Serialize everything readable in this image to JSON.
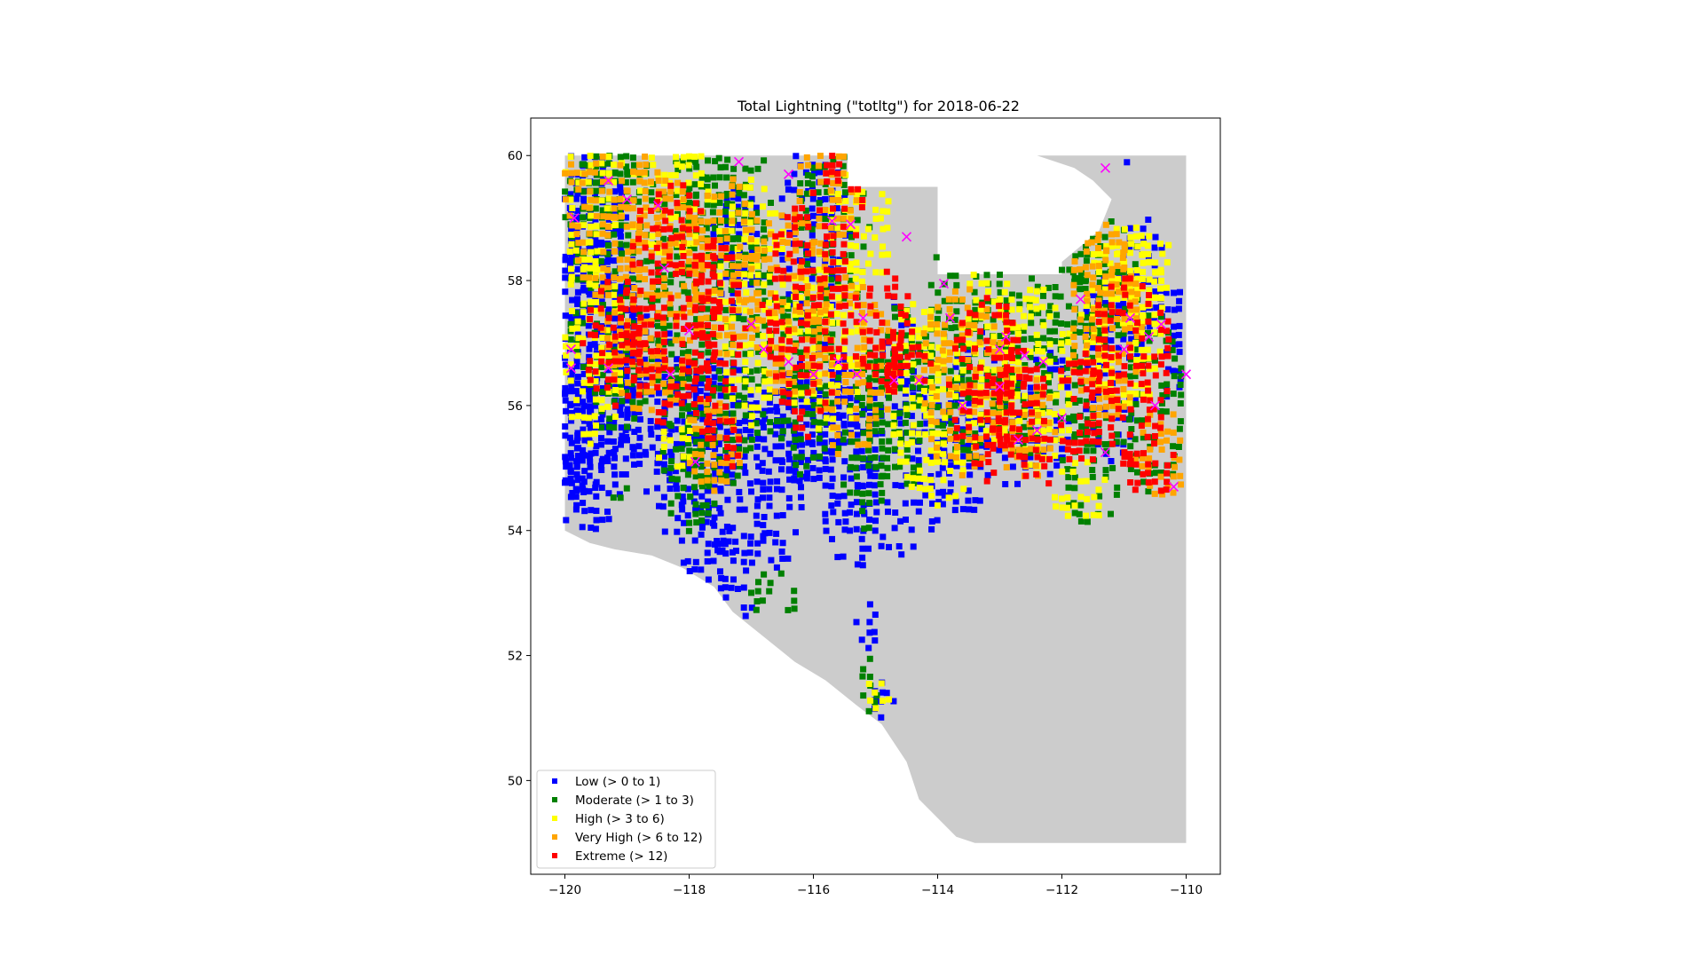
{
  "chart_data": {
    "type": "scatter",
    "title": "Total Lightning (\"totltg\") for 2018-06-22",
    "xlabel": "",
    "ylabel": "",
    "xlim": [
      -120.55,
      -109.45
    ],
    "ylim": [
      48.5,
      60.6
    ],
    "x_ticks": [
      -120,
      -118,
      -116,
      -114,
      -112,
      -110
    ],
    "x_tick_labels": [
      "−120",
      "−118",
      "−116",
      "−114",
      "−112",
      "−110"
    ],
    "y_ticks": [
      50,
      52,
      54,
      56,
      58,
      60
    ],
    "y_tick_labels": [
      "50",
      "52",
      "54",
      "56",
      "58",
      "60"
    ],
    "grid": false,
    "legend_placement": "lower-left",
    "region_color": "#cccccc",
    "region_outline": [
      [
        -120,
        60
      ],
      [
        -115.45,
        60
      ],
      [
        -115.45,
        59.5
      ],
      [
        -114,
        59.5
      ],
      [
        -114,
        58.1
      ],
      [
        -112,
        58.1
      ],
      [
        -112,
        58.3
      ],
      [
        -111.4,
        58.8
      ],
      [
        -111.2,
        59.3
      ],
      [
        -111.5,
        59.6
      ],
      [
        -111.8,
        59.8
      ],
      [
        -112.4,
        60
      ],
      [
        -110,
        60
      ],
      [
        -110,
        49
      ],
      [
        -113.4,
        49
      ],
      [
        -113.7,
        49.1
      ],
      [
        -114.3,
        49.7
      ],
      [
        -114.5,
        50.3
      ],
      [
        -114.9,
        50.9
      ],
      [
        -115.3,
        51.2
      ],
      [
        -115.8,
        51.6
      ],
      [
        -116.3,
        51.9
      ],
      [
        -116.8,
        52.3
      ],
      [
        -117.3,
        52.7
      ],
      [
        -117.6,
        53.1
      ],
      [
        -118.1,
        53.4
      ],
      [
        -118.6,
        53.6
      ],
      [
        -119.2,
        53.7
      ],
      [
        -119.6,
        53.8
      ],
      [
        -120,
        54
      ]
    ],
    "series": [
      {
        "name": "Low (> 0 to 1)",
        "color": "#0000ff",
        "marker": "square",
        "cells": [
          [
            -120.0,
            59.3,
            2.0,
            4
          ],
          [
            -119.8,
            57.4,
            2.0,
            6
          ],
          [
            -119.7,
            56.4,
            1.8,
            5
          ],
          [
            -119.8,
            55.5,
            1.0,
            2
          ],
          [
            -118.6,
            56.0,
            1.0,
            3
          ],
          [
            -118.0,
            55.2,
            1.4,
            3
          ],
          [
            -117.5,
            54.8,
            1.6,
            4
          ],
          [
            -116.6,
            54.9,
            1.0,
            3
          ],
          [
            -115.4,
            54.8,
            1.0,
            3
          ],
          [
            -114.6,
            55.1,
            1.6,
            3
          ],
          [
            -113.6,
            55.2,
            1.0,
            2
          ],
          [
            -112.8,
            55.6,
            0.8,
            2
          ],
          [
            -112.2,
            55.9,
            0.8,
            2
          ],
          [
            -111.2,
            56.6,
            1.0,
            3
          ],
          [
            -110.7,
            58.0,
            0.8,
            2
          ],
          [
            -110.2,
            57.0,
            0.4,
            2
          ],
          [
            -113.4,
            56.2,
            0.8,
            2
          ],
          [
            -114.6,
            56.9,
            0.6,
            2
          ],
          [
            -116.0,
            58.7,
            1.2,
            3
          ],
          [
            -117.2,
            58.5,
            1.0,
            2
          ],
          [
            -116.2,
            55.7,
            1.0,
            2
          ],
          [
            -115.7,
            56.0,
            0.8,
            2
          ],
          [
            -117.4,
            53.8,
            0.5,
            0.5
          ],
          [
            -117.2,
            52.7,
            0.6,
            0.4
          ],
          [
            -115.1,
            52.5,
            0.4,
            0.8
          ],
          [
            -114.9,
            51.3,
            0.4,
            0.6
          ],
          [
            -117.4,
            55.4,
            0.6,
            1.0
          ],
          [
            -111.0,
            59.85,
            0.3,
            0.2
          ]
        ]
      },
      {
        "name": "Moderate (> 1 to 3)",
        "color": "#008000",
        "marker": "square",
        "cells": [
          [
            -119.6,
            59.6,
            1.6,
            2
          ],
          [
            -119.2,
            58.0,
            1.6,
            5
          ],
          [
            -117.6,
            57.6,
            2.0,
            6
          ],
          [
            -117.4,
            59.2,
            1.4,
            3
          ],
          [
            -116.2,
            56.4,
            1.2,
            3
          ],
          [
            -115.7,
            58.8,
            1.2,
            3
          ],
          [
            -115.2,
            55.4,
            0.8,
            3
          ],
          [
            -114.6,
            56.1,
            1.2,
            3
          ],
          [
            -113.5,
            57.0,
            1.4,
            4
          ],
          [
            -112.6,
            56.6,
            1.0,
            3
          ],
          [
            -111.8,
            57.0,
            1.0,
            3
          ],
          [
            -111.3,
            58.0,
            1.2,
            2
          ],
          [
            -110.5,
            56.0,
            1.0,
            3
          ],
          [
            -111.5,
            55.0,
            1.2,
            2
          ],
          [
            -119.1,
            54.6,
            0.4,
            0.4
          ],
          [
            -118.0,
            55.0,
            1.0,
            2
          ],
          [
            -115.1,
            51.6,
            0.4,
            1.0
          ],
          [
            -116.6,
            53.0,
            0.8,
            0.8
          ]
        ]
      },
      {
        "name": "High (> 3 to 6)",
        "color": "#ffff00",
        "marker": "square",
        "cells": [
          [
            -119.8,
            59.4,
            1.6,
            3
          ],
          [
            -119.6,
            56.9,
            1.2,
            3
          ],
          [
            -118.3,
            59.3,
            1.4,
            2
          ],
          [
            -117.0,
            57.7,
            1.2,
            4
          ],
          [
            -115.8,
            57.0,
            1.4,
            3
          ],
          [
            -115.2,
            59.0,
            1.2,
            2
          ],
          [
            -114.3,
            56.2,
            1.0,
            3
          ],
          [
            -113.2,
            56.8,
            1.2,
            3
          ],
          [
            -112.4,
            56.4,
            1.2,
            3
          ],
          [
            -111.0,
            57.4,
            1.4,
            3
          ],
          [
            -110.7,
            58.2,
            1.0,
            1.5
          ],
          [
            -114.0,
            54.9,
            1.0,
            1
          ],
          [
            -111.7,
            54.6,
            1.0,
            1
          ],
          [
            -115.0,
            51.3,
            0.4,
            0.6
          ],
          [
            -118.2,
            55.4,
            0.8,
            1
          ]
        ]
      },
      {
        "name": "Very High (> 6 to 12)",
        "color": "#ffa500",
        "marker": "square",
        "cells": [
          [
            -119.4,
            59.4,
            1.6,
            3
          ],
          [
            -118.6,
            57.8,
            1.8,
            4
          ],
          [
            -117.4,
            58.2,
            1.2,
            3
          ],
          [
            -116.4,
            57.6,
            1.4,
            3
          ],
          [
            -115.8,
            59.3,
            1.0,
            2
          ],
          [
            -115.4,
            56.6,
            1.4,
            3
          ],
          [
            -113.6,
            56.4,
            1.4,
            3
          ],
          [
            -112.6,
            55.6,
            1.0,
            2
          ],
          [
            -111.3,
            57.2,
            1.2,
            3
          ],
          [
            -110.4,
            55.2,
            0.8,
            1.5
          ],
          [
            -111.4,
            58.4,
            1.0,
            1
          ],
          [
            -117.6,
            55.4,
            1.0,
            1.5
          ]
        ]
      },
      {
        "name": "Extreme (> 12)",
        "color": "#ff0000",
        "marker": "square",
        "cells": [
          [
            -118.3,
            57.6,
            1.6,
            4
          ],
          [
            -117.6,
            57.2,
            1.0,
            3
          ],
          [
            -116.1,
            57.5,
            1.4,
            4
          ],
          [
            -115.5,
            59.6,
            0.8,
            2
          ],
          [
            -114.9,
            57.2,
            1.0,
            2
          ],
          [
            -114.7,
            56.6,
            1.4,
            1
          ],
          [
            -113.2,
            56.3,
            1.2,
            3
          ],
          [
            -112.7,
            55.9,
            1.0,
            2
          ],
          [
            -111.7,
            56.0,
            0.8,
            2
          ],
          [
            -110.9,
            56.6,
            1.4,
            3
          ],
          [
            -110.6,
            55.0,
            1.0,
            1
          ],
          [
            -117.5,
            55.4,
            0.8,
            1
          ],
          [
            -119.2,
            57.0,
            1.0,
            2
          ],
          [
            -112.4,
            55.1,
            0.6,
            1
          ]
        ]
      },
      {
        "name": "",
        "color": "#ff00ff",
        "marker": "x",
        "points": [
          [
            -119.3,
            59.6
          ],
          [
            -119.0,
            59.3
          ],
          [
            -119.85,
            59.0
          ],
          [
            -118.5,
            59.2
          ],
          [
            -118.4,
            58.2
          ],
          [
            -117.2,
            59.9
          ],
          [
            -116.4,
            59.7
          ],
          [
            -115.4,
            58.9
          ],
          [
            -115.7,
            58.95
          ],
          [
            -114.5,
            58.7
          ],
          [
            -113.9,
            57.95
          ],
          [
            -119.9,
            56.9
          ],
          [
            -119.9,
            56.6
          ],
          [
            -119.3,
            56.6
          ],
          [
            -118.3,
            56.5
          ],
          [
            -118.0,
            57.2
          ],
          [
            -117.0,
            57.3
          ],
          [
            -116.8,
            56.9
          ],
          [
            -116.4,
            56.7
          ],
          [
            -116.0,
            56.5
          ],
          [
            -115.6,
            56.7
          ],
          [
            -115.3,
            56.5
          ],
          [
            -115.2,
            57.4
          ],
          [
            -114.7,
            56.4
          ],
          [
            -114.3,
            56.4
          ],
          [
            -113.8,
            57.4
          ],
          [
            -113.6,
            56.0
          ],
          [
            -113.0,
            56.3
          ],
          [
            -112.9,
            57.1
          ],
          [
            -112.6,
            56.8
          ],
          [
            -112.3,
            56.7
          ],
          [
            -112.0,
            55.8
          ],
          [
            -112.4,
            55.6
          ],
          [
            -112.7,
            55.45
          ],
          [
            -111.7,
            57.7
          ],
          [
            -111.3,
            55.25
          ],
          [
            -110.9,
            57.4
          ],
          [
            -110.6,
            57.1
          ],
          [
            -110.4,
            57.3
          ],
          [
            -110.5,
            56.0
          ],
          [
            -110.0,
            56.5
          ],
          [
            -110.2,
            54.7
          ],
          [
            -111.3,
            59.8
          ],
          [
            -117.9,
            55.1
          ],
          [
            -111.0,
            56.9
          ],
          [
            -113.0,
            56.9
          ]
        ]
      }
    ],
    "legend": [
      {
        "label": "Low (> 0 to 1)",
        "color": "#0000ff"
      },
      {
        "label": "Moderate (> 1 to 3)",
        "color": "#008000"
      },
      {
        "label": "High (> 3 to 6)",
        "color": "#ffff00"
      },
      {
        "label": "Very High (> 6 to 12)",
        "color": "#ffa500"
      },
      {
        "label": "Extreme (> 12)",
        "color": "#ff0000"
      }
    ]
  }
}
